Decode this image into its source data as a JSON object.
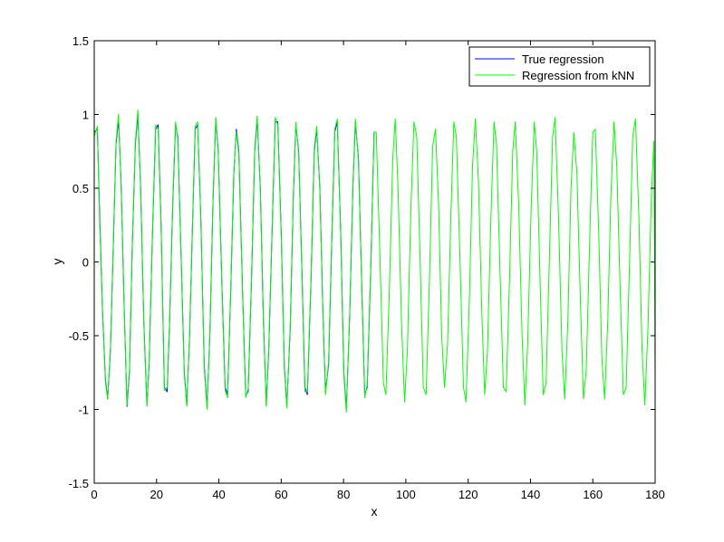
{
  "chart_data": {
    "type": "line",
    "title": "",
    "xlabel": "x",
    "ylabel": "y",
    "xlim": [
      0,
      180
    ],
    "ylim": [
      -1.5,
      1.5
    ],
    "xticks": [
      0,
      20,
      40,
      60,
      80,
      100,
      120,
      140,
      160,
      180
    ],
    "yticks": [
      -1.5,
      -1,
      -0.5,
      0,
      0.5,
      1,
      1.5
    ],
    "xtick_labels": [
      "0",
      "20",
      "40",
      "60",
      "80",
      "100",
      "120",
      "140",
      "160",
      "180"
    ],
    "ytick_labels": [
      "-1.5",
      "-1",
      "-0.5",
      "0",
      "0.5",
      "1",
      "1.5"
    ],
    "grid": false,
    "legend_position": "top-right",
    "series": [
      {
        "name": "True regression",
        "color": "#0000ff",
        "points": [
          [
            0,
            0.88
          ],
          [
            1,
            0.9
          ],
          [
            1.7,
            0.35
          ],
          [
            2.6,
            -0.3
          ],
          [
            3.6,
            -0.8
          ],
          [
            4.3,
            -0.93
          ],
          [
            5.2,
            -0.6
          ],
          [
            6.1,
            0.1
          ],
          [
            7.0,
            0.8
          ],
          [
            7.8,
            0.97
          ],
          [
            8.6,
            0.55
          ],
          [
            9.6,
            -0.3
          ],
          [
            10.5,
            -0.98
          ],
          [
            11.3,
            -0.75
          ],
          [
            12.2,
            0.1
          ],
          [
            13.2,
            0.8
          ],
          [
            14.0,
            1.0
          ],
          [
            14.9,
            0.5
          ],
          [
            15.9,
            -0.4
          ],
          [
            16.9,
            -0.97
          ],
          [
            17.6,
            -0.7
          ],
          [
            18.7,
            0.2
          ],
          [
            19.7,
            0.9
          ],
          [
            20.5,
            0.93
          ],
          [
            21.4,
            0.3
          ],
          [
            22.5,
            -0.85
          ],
          [
            23.4,
            -0.88
          ],
          [
            24.2,
            -0.4
          ],
          [
            25.2,
            0.4
          ],
          [
            26.1,
            0.93
          ],
          [
            26.8,
            0.85
          ],
          [
            27.8,
            0.1
          ],
          [
            28.9,
            -0.75
          ],
          [
            29.7,
            -0.97
          ],
          [
            30.6,
            -0.5
          ],
          [
            31.6,
            0.3
          ],
          [
            32.4,
            0.9
          ],
          [
            33.2,
            0.93
          ],
          [
            34.2,
            0.3
          ],
          [
            35.3,
            -0.7
          ],
          [
            36.2,
            -0.98
          ],
          [
            37.1,
            -0.5
          ],
          [
            38.1,
            0.4
          ],
          [
            39.0,
            0.97
          ],
          [
            39.8,
            0.75
          ],
          [
            40.9,
            -0.1
          ],
          [
            42.0,
            -0.85
          ],
          [
            42.8,
            -0.9
          ],
          [
            43.8,
            -0.2
          ],
          [
            44.8,
            0.6
          ],
          [
            45.6,
            0.9
          ],
          [
            46.4,
            0.75
          ],
          [
            47.6,
            -0.2
          ],
          [
            48.6,
            -0.9
          ],
          [
            49.4,
            -0.88
          ],
          [
            50.5,
            -0.1
          ],
          [
            51.5,
            0.75
          ],
          [
            52.3,
            0.97
          ],
          [
            53.3,
            0.5
          ],
          [
            54.3,
            -0.4
          ],
          [
            55.2,
            -0.97
          ],
          [
            56.0,
            -0.6
          ],
          [
            57.2,
            0.3
          ],
          [
            58.1,
            0.95
          ],
          [
            58.9,
            0.95
          ],
          [
            60.0,
            0.2
          ],
          [
            61.0,
            -0.7
          ],
          [
            61.8,
            -0.98
          ],
          [
            62.9,
            -0.45
          ],
          [
            63.9,
            0.45
          ],
          [
            64.7,
            0.93
          ],
          [
            65.6,
            0.75
          ],
          [
            66.7,
            -0.1
          ],
          [
            67.6,
            -0.85
          ],
          [
            68.4,
            -0.9
          ],
          [
            69.6,
            -0.1
          ],
          [
            70.6,
            0.75
          ],
          [
            71.4,
            0.9
          ],
          [
            72.4,
            0.5
          ],
          [
            73.4,
            -0.35
          ],
          [
            74.2,
            -0.88
          ],
          [
            75.2,
            -0.7
          ],
          [
            76.3,
            0.2
          ],
          [
            77.2,
            0.88
          ],
          [
            78.0,
            0.95
          ],
          [
            79.1,
            0.2
          ],
          [
            80.1,
            -0.75
          ],
          [
            80.9,
            -1.0
          ],
          [
            82.0,
            -0.35
          ],
          [
            83.0,
            0.5
          ],
          [
            83.8,
            0.95
          ],
          [
            84.8,
            0.7
          ],
          [
            85.9,
            -0.2
          ],
          [
            86.8,
            -0.9
          ],
          [
            87.6,
            -0.85
          ],
          [
            88.8,
            0.0
          ],
          [
            89.8,
            0.88
          ]
        ]
      },
      {
        "name": "Regression from kNN",
        "color": "#00ff00",
        "points": [
          [
            0,
            0.85
          ],
          [
            1,
            0.92
          ],
          [
            1.7,
            0.3
          ],
          [
            2.6,
            -0.32
          ],
          [
            3.6,
            -0.82
          ],
          [
            4.3,
            -0.93
          ],
          [
            5.2,
            -0.58
          ],
          [
            6.1,
            0.12
          ],
          [
            7.0,
            0.82
          ],
          [
            7.8,
            1.0
          ],
          [
            8.6,
            0.53
          ],
          [
            9.6,
            -0.32
          ],
          [
            10.5,
            -0.97
          ],
          [
            11.3,
            -0.73
          ],
          [
            12.2,
            0.12
          ],
          [
            13.2,
            0.82
          ],
          [
            14.0,
            1.03
          ],
          [
            14.9,
            0.48
          ],
          [
            15.9,
            -0.42
          ],
          [
            16.9,
            -0.98
          ],
          [
            17.6,
            -0.68
          ],
          [
            18.7,
            0.22
          ],
          [
            19.7,
            0.93
          ],
          [
            20.5,
            0.9
          ],
          [
            21.4,
            0.28
          ],
          [
            22.5,
            -0.87
          ],
          [
            23.4,
            -0.85
          ],
          [
            24.2,
            -0.38
          ],
          [
            25.2,
            0.42
          ],
          [
            26.1,
            0.95
          ],
          [
            26.8,
            0.83
          ],
          [
            27.8,
            0.08
          ],
          [
            28.9,
            -0.77
          ],
          [
            29.7,
            -0.98
          ],
          [
            30.6,
            -0.48
          ],
          [
            31.6,
            0.32
          ],
          [
            32.4,
            0.92
          ],
          [
            33.2,
            0.95
          ],
          [
            34.2,
            0.28
          ],
          [
            35.3,
            -0.72
          ],
          [
            36.2,
            -1.0
          ],
          [
            37.1,
            -0.48
          ],
          [
            38.1,
            0.42
          ],
          [
            39.0,
            0.98
          ],
          [
            39.8,
            0.73
          ],
          [
            40.9,
            -0.12
          ],
          [
            42.0,
            -0.87
          ],
          [
            42.8,
            -0.92
          ],
          [
            43.8,
            -0.18
          ],
          [
            44.8,
            0.62
          ],
          [
            45.6,
            0.88
          ],
          [
            46.4,
            0.73
          ],
          [
            47.6,
            -0.22
          ],
          [
            48.6,
            -0.92
          ],
          [
            49.4,
            -0.86
          ],
          [
            50.5,
            -0.08
          ],
          [
            51.5,
            0.77
          ],
          [
            52.3,
            0.99
          ],
          [
            53.3,
            0.48
          ],
          [
            54.3,
            -0.42
          ],
          [
            55.2,
            -0.98
          ],
          [
            56.0,
            -0.58
          ],
          [
            57.2,
            0.32
          ],
          [
            58.1,
            0.98
          ],
          [
            58.9,
            0.93
          ],
          [
            60.0,
            0.18
          ],
          [
            61.0,
            -0.72
          ],
          [
            61.8,
            -0.99
          ],
          [
            62.9,
            -0.43
          ],
          [
            63.9,
            0.47
          ],
          [
            64.7,
            0.95
          ],
          [
            65.6,
            0.73
          ],
          [
            66.7,
            -0.12
          ],
          [
            67.6,
            -0.88
          ],
          [
            68.4,
            -0.88
          ],
          [
            69.6,
            -0.08
          ],
          [
            70.6,
            0.77
          ],
          [
            71.4,
            0.92
          ],
          [
            72.4,
            0.48
          ],
          [
            73.4,
            -0.37
          ],
          [
            74.2,
            -0.9
          ],
          [
            75.2,
            -0.68
          ],
          [
            76.3,
            0.22
          ],
          [
            77.2,
            0.9
          ],
          [
            78.0,
            0.97
          ],
          [
            79.1,
            0.18
          ],
          [
            80.1,
            -0.77
          ],
          [
            80.9,
            -1.02
          ],
          [
            82.0,
            -0.33
          ],
          [
            83.0,
            0.52
          ],
          [
            83.8,
            0.97
          ],
          [
            84.8,
            0.68
          ],
          [
            85.9,
            -0.22
          ],
          [
            86.8,
            -0.92
          ],
          [
            87.6,
            -0.83
          ],
          [
            88.8,
            0.02
          ],
          [
            89.8,
            0.88
          ],
          [
            90.5,
            0.88
          ],
          [
            91.6,
            0.1
          ],
          [
            92.8,
            -0.82
          ],
          [
            93.6,
            -0.9
          ],
          [
            94.7,
            -0.2
          ],
          [
            95.8,
            0.7
          ],
          [
            96.6,
            0.97
          ],
          [
            97.5,
            0.5
          ],
          [
            98.6,
            -0.4
          ],
          [
            99.6,
            -0.95
          ],
          [
            100.5,
            -0.6
          ],
          [
            101.6,
            0.35
          ],
          [
            102.6,
            0.95
          ],
          [
            103.5,
            0.85
          ],
          [
            104.6,
            0.0
          ],
          [
            105.6,
            -0.85
          ],
          [
            106.5,
            -0.9
          ],
          [
            107.6,
            -0.1
          ],
          [
            108.6,
            0.78
          ],
          [
            109.5,
            0.9
          ],
          [
            110.5,
            0.4
          ],
          [
            111.5,
            -0.5
          ],
          [
            112.4,
            -0.85
          ],
          [
            113.4,
            -0.55
          ],
          [
            114.5,
            0.35
          ],
          [
            115.4,
            0.95
          ],
          [
            116.2,
            0.85
          ],
          [
            117.4,
            0.0
          ],
          [
            118.5,
            -0.85
          ],
          [
            119.3,
            -0.95
          ],
          [
            120.4,
            -0.25
          ],
          [
            121.4,
            0.65
          ],
          [
            122.3,
            0.97
          ],
          [
            123.3,
            0.55
          ],
          [
            124.4,
            -0.35
          ],
          [
            125.3,
            -0.9
          ],
          [
            126.2,
            -0.6
          ],
          [
            127.3,
            0.3
          ],
          [
            128.3,
            0.95
          ],
          [
            129.1,
            0.8
          ],
          [
            130.2,
            -0.05
          ],
          [
            131.3,
            -0.85
          ],
          [
            132.2,
            -0.88
          ],
          [
            133.3,
            -0.1
          ],
          [
            134.3,
            0.75
          ],
          [
            135.1,
            0.95
          ],
          [
            136.2,
            0.4
          ],
          [
            137.3,
            -0.5
          ],
          [
            138.2,
            -0.97
          ],
          [
            139.1,
            -0.55
          ],
          [
            140.2,
            0.35
          ],
          [
            141.2,
            0.95
          ],
          [
            142.0,
            0.75
          ],
          [
            143.1,
            -0.15
          ],
          [
            144.1,
            -0.9
          ],
          [
            145.0,
            -0.82
          ],
          [
            146.1,
            0.05
          ],
          [
            147.1,
            0.85
          ],
          [
            147.9,
            0.98
          ],
          [
            149.0,
            0.3
          ],
          [
            150.1,
            -0.6
          ],
          [
            151.0,
            -0.93
          ],
          [
            152.0,
            -0.4
          ],
          [
            153.0,
            0.5
          ],
          [
            153.9,
            0.88
          ],
          [
            154.9,
            0.6
          ],
          [
            156.0,
            -0.25
          ],
          [
            157.0,
            -0.93
          ],
          [
            157.9,
            -0.73
          ],
          [
            159.0,
            0.15
          ],
          [
            160.0,
            0.88
          ],
          [
            160.8,
            0.9
          ],
          [
            161.9,
            0.2
          ],
          [
            162.9,
            -0.65
          ],
          [
            163.8,
            -0.93
          ],
          [
            164.8,
            -0.4
          ],
          [
            165.8,
            0.45
          ],
          [
            166.8,
            0.95
          ],
          [
            167.7,
            0.65
          ],
          [
            168.8,
            -0.2
          ],
          [
            169.8,
            -0.9
          ],
          [
            170.7,
            -0.85
          ],
          [
            171.8,
            0.0
          ],
          [
            172.8,
            0.85
          ],
          [
            173.7,
            0.97
          ],
          [
            174.8,
            0.3
          ],
          [
            175.8,
            -0.6
          ],
          [
            176.7,
            -0.97
          ],
          [
            177.7,
            -0.45
          ],
          [
            178.8,
            0.45
          ],
          [
            179.6,
            0.82
          ],
          [
            180,
            -0.78
          ]
        ]
      }
    ]
  }
}
